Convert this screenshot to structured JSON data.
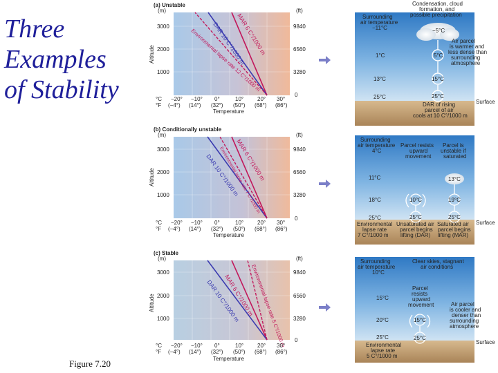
{
  "slide": {
    "title_lines": [
      "Three",
      "Examples",
      "of Stability"
    ],
    "figure_label": "Figure 7.20"
  },
  "colors": {
    "title": "#1f1f9a",
    "dar": "#3b3bb0",
    "mar": "#c2185b",
    "env": "#c2185b",
    "arrow": "#7b7fc8"
  },
  "axes": {
    "y_label": "Altitude",
    "x_label": "Temperature",
    "unit_m": "(m)",
    "unit_ft": "(ft)",
    "alt_m_ticks": [
      "3000",
      "2000",
      "1000"
    ],
    "alt_ft_ticks": [
      "9840",
      "6560",
      "3280",
      "0"
    ],
    "c_ticks": [
      "°C",
      "−20°",
      "−10°",
      "0°",
      "10°",
      "20°",
      "30°"
    ],
    "f_ticks": [
      "°F",
      "(−4°)",
      "(14°)",
      "(32°)",
      "(50°)",
      "(68°)",
      "(86°)"
    ],
    "surface": "Surface"
  },
  "panels": [
    {
      "heading": "(a) Unstable",
      "line_labels": {
        "mar": "MAR 6 C°/1000 m",
        "dar": "DAR 10 C°/1000 m",
        "env": "Environmental lapse rate 12 C°/1000 m"
      },
      "right": {
        "col_left_header": [
          "Surrounding",
          "air temperature",
          "−11°C"
        ],
        "col_right_header": [
          "Condensation, cloud",
          "formation, and",
          "possible precipitation"
        ],
        "temps": [
          "1°C",
          "13°C",
          "25°C"
        ],
        "parcel_temps": [
          "−5°C",
          "5°C",
          "15°C",
          "25°C"
        ],
        "note": [
          "Air parcel",
          "is warmer and",
          "less dense than",
          "surrounding",
          "atmosphere"
        ],
        "bottom": [
          "DAR of rising",
          "parcel of air",
          "cools at 10 C°/1000 m"
        ]
      }
    },
    {
      "heading": "(b) Conditionally unstable",
      "line_labels": {
        "mar": "MAR 6 C°/1000 m",
        "dar": "DAR 10 C°/1000 m",
        "env": "Environmental lapse rate 7 C°/1000 m"
      },
      "right": {
        "col_left_header": [
          "Surrounding",
          "air temperature",
          "4°C"
        ],
        "col_mid_header": [
          "Parcel resists",
          "upward",
          "movement"
        ],
        "col_right_header": [
          "Parcel is",
          "unstable if",
          "saturated"
        ],
        "temps": [
          "11°C",
          "18°C",
          "25°C"
        ],
        "parcel_temps": [
          "10°C",
          "19°C",
          "13°C",
          "25°C",
          "25°C"
        ],
        "bottom_left": [
          "Environmental",
          "lapse rate",
          "7 C°/1000 m"
        ],
        "bottom_mid": [
          "Unsaturated air",
          "parcel begins",
          "lifting (DAR)"
        ],
        "bottom_right": [
          "Saturated air",
          "parcel begins",
          "lifting (MAR)"
        ]
      }
    },
    {
      "heading": "(c) Stable",
      "line_labels": {
        "mar": "MAR 6 C°/1000 m",
        "dar": "DAR 10 C°/1000 m",
        "env": "Environmental lapse rate 5 C°/1000 m"
      },
      "right": {
        "col_left_header": [
          "Surrounding",
          "air temperature",
          "10°C"
        ],
        "col_right_header": [
          "Clear skies, stagnant",
          "air conditions"
        ],
        "temps": [
          "15°C",
          "20°C",
          "25°C"
        ],
        "parcel_temps": [
          "15°C",
          "25°C"
        ],
        "mid_note": [
          "Parcel",
          "resists",
          "upward",
          "movement"
        ],
        "note": [
          "Air parcel",
          "is cooler and",
          "denser than",
          "surrounding",
          "atmosphere"
        ],
        "bottom": [
          "Environmental",
          "lapse rate",
          "5 C°/1000 m"
        ]
      }
    }
  ]
}
